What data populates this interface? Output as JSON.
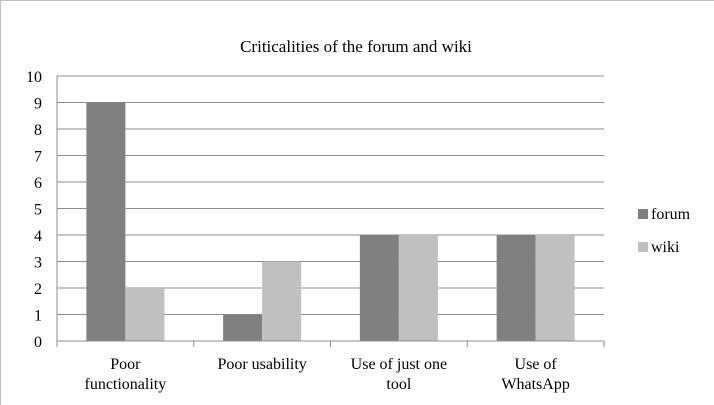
{
  "chart_data": {
    "type": "bar",
    "title": "Criticalities of the forum and wiki",
    "categories": [
      [
        "Poor",
        "functionality"
      ],
      [
        "Poor usability"
      ],
      [
        "Use of just one",
        "tool"
      ],
      [
        "Use of",
        "WhatsApp"
      ]
    ],
    "series": [
      {
        "name": "forum",
        "values": [
          9,
          1,
          4,
          4
        ],
        "color": "#808080"
      },
      {
        "name": "wiki",
        "values": [
          2,
          3,
          4,
          4
        ],
        "color": "#c0c0c0"
      }
    ],
    "ylim": [
      0,
      10
    ],
    "yticks": [
      0,
      1,
      2,
      3,
      4,
      5,
      6,
      7,
      8,
      9,
      10
    ],
    "grid": true,
    "legend": "right"
  }
}
